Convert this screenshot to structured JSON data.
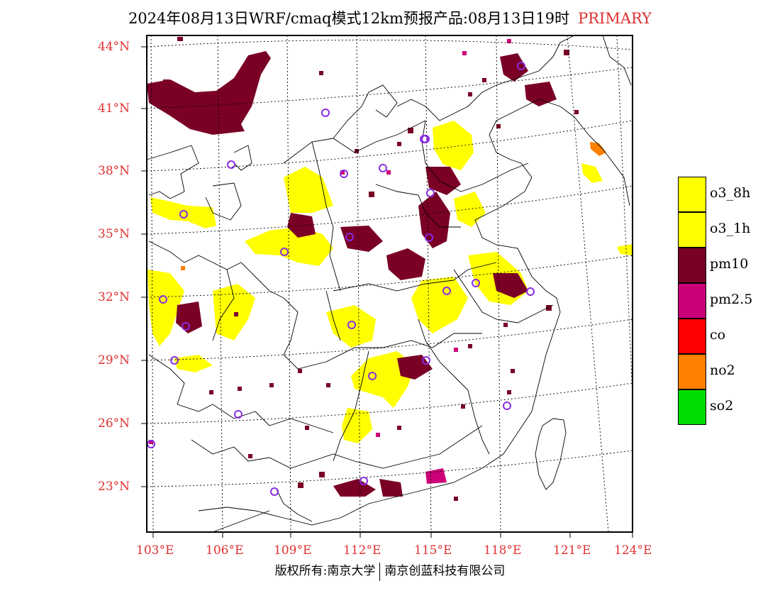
{
  "title": {
    "main": "2024年08月13日WRF/cmaq模式12km预报产品:08月13日19时",
    "tag": "PRIMARY"
  },
  "axes": {
    "lat_labels": [
      "44°N",
      "41°N",
      "38°N",
      "35°N",
      "32°N",
      "29°N",
      "26°N",
      "23°N"
    ],
    "lon_labels": [
      "103°E",
      "106°E",
      "109°E",
      "112°E",
      "115°E",
      "118°E",
      "121°E",
      "124°E"
    ],
    "lat_values": [
      44,
      41,
      38,
      35,
      32,
      29,
      26,
      23
    ],
    "lon_values": [
      103,
      106,
      109,
      112,
      115,
      118,
      121,
      124
    ],
    "label_color": "#e03030"
  },
  "legend": [
    {
      "label": "o3_8h",
      "color": "#ffff00"
    },
    {
      "label": "o3_1h",
      "color": "#ffff00"
    },
    {
      "label": "pm10",
      "color": "#7a0026"
    },
    {
      "label": "pm2.5",
      "color": "#cc0077"
    },
    {
      "label": "co",
      "color": "#ff0000"
    },
    {
      "label": "no2",
      "color": "#ff7f00"
    },
    {
      "label": "so2",
      "color": "#00dd00"
    }
  ],
  "footer": {
    "left": "版权所有:南京大学",
    "right": "南京创蓝科技有限公司"
  },
  "pollutant_colors": {
    "o3": "#ffff00",
    "pm10": "#7a0026",
    "pm25": "#cc0077",
    "no2": "#ff7f00",
    "station": "#8a2be2"
  }
}
